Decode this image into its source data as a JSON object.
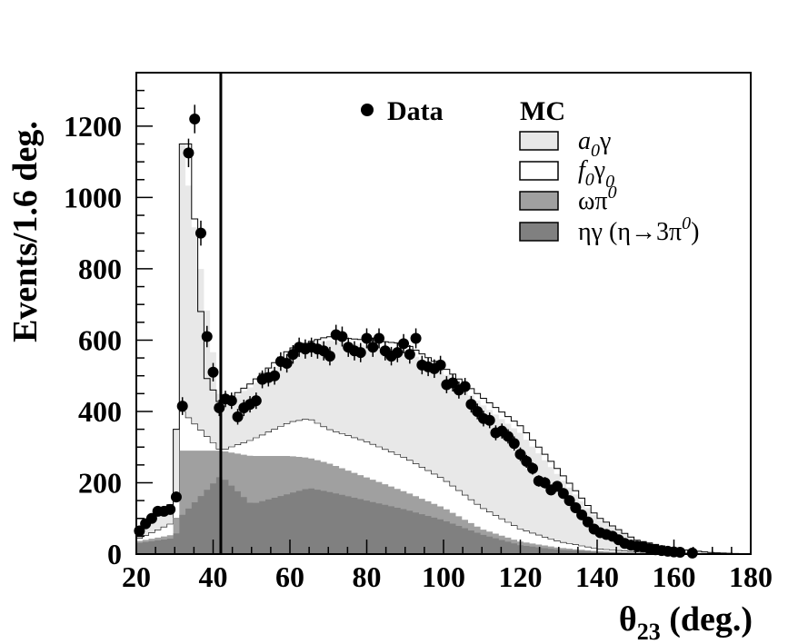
{
  "chart_data": {
    "type": "bar",
    "xlabel_main": "θ",
    "xlabel_sub": "23",
    "xlabel_unit": " (deg.)",
    "ylabel": "Events/1.6 deg.",
    "xlim": [
      20,
      180
    ],
    "ylim": [
      0,
      1350
    ],
    "x_ticks": [
      20,
      40,
      60,
      80,
      100,
      120,
      140,
      160,
      180
    ],
    "y_ticks": [
      0,
      200,
      400,
      600,
      800,
      1000,
      1200
    ],
    "cut_line_x": 42,
    "bin_width": 1.6,
    "legend": {
      "data_label": "Data",
      "mc_header": "MC",
      "a0_main": "a",
      "a0_sub": "0",
      "a0_tail": "γ",
      "f0_main": "f",
      "f0_sub": "0",
      "f0_mid": "γ",
      "f0_sub2": "0",
      "omega_main": "ωπ",
      "omega_sup": "0",
      "eta_main": "ηγ (η→3π",
      "eta_sup": "0",
      "eta_tail": ")"
    },
    "colors": {
      "a0gamma": "#e8e8e8",
      "f0gamma": "#ffffff",
      "omegapi": "#a0a0a0",
      "etagamma": "#808080",
      "data": "#000000"
    },
    "series": [
      {
        "key": "etagamma",
        "x": [
          20,
          30,
          32,
          42,
          50,
          60,
          65,
          70,
          80,
          90,
          100,
          110,
          120,
          130,
          140,
          150,
          160,
          170,
          180
        ],
        "values": [
          30,
          45,
          110,
          220,
          140,
          170,
          185,
          175,
          150,
          125,
          95,
          55,
          25,
          12,
          6,
          3,
          2,
          1,
          0
        ]
      },
      {
        "key": "omegapi",
        "x": [
          20,
          30,
          32,
          42,
          50,
          60,
          65,
          70,
          80,
          90,
          100,
          110,
          120,
          130,
          140,
          150,
          160,
          170,
          180
        ],
        "values": [
          35,
          55,
          290,
          290,
          275,
          275,
          270,
          255,
          215,
          175,
          130,
          70,
          35,
          18,
          8,
          4,
          2,
          1,
          0
        ]
      },
      {
        "key": "f0gamma",
        "x": [
          20,
          30,
          32,
          42,
          50,
          60,
          65,
          70,
          80,
          90,
          100,
          110,
          120,
          130,
          140,
          150,
          160,
          170,
          180
        ],
        "values": [
          40,
          90,
          400,
          290,
          320,
          370,
          380,
          350,
          315,
          270,
          210,
          130,
          70,
          35,
          15,
          6,
          3,
          1,
          0
        ]
      },
      {
        "key": "a0gamma",
        "x": [
          20,
          30,
          32,
          42,
          50,
          60,
          65,
          70,
          80,
          90,
          100,
          110,
          120,
          130,
          140,
          150,
          160,
          170,
          180
        ],
        "values": [
          55,
          150,
          1150,
          420,
          470,
          560,
          585,
          600,
          585,
          570,
          510,
          420,
          340,
          220,
          100,
          40,
          15,
          4,
          0
        ]
      }
    ],
    "total_mc": {
      "x": [
        20,
        30,
        32,
        34,
        36,
        38,
        42,
        50,
        60,
        65,
        70,
        80,
        90,
        100,
        110,
        120,
        130,
        140,
        150,
        160,
        170,
        180
      ],
      "values": [
        55,
        150,
        1150,
        1150,
        800,
        500,
        420,
        480,
        575,
        595,
        610,
        600,
        590,
        525,
        440,
        360,
        235,
        105,
        40,
        15,
        4,
        0
      ]
    },
    "data_points": {
      "x": [
        20.8,
        22.4,
        24.0,
        25.6,
        27.2,
        28.8,
        30.4,
        32.0,
        33.6,
        35.2,
        36.8,
        38.4,
        40.0,
        41.6,
        43.2,
        44.8,
        46.4,
        48.0,
        49.6,
        51.2,
        52.8,
        54.4,
        56.0,
        57.6,
        59.2,
        60.8,
        62.4,
        64.0,
        65.6,
        67.2,
        68.8,
        70.4,
        72.0,
        73.6,
        75.2,
        76.8,
        78.4,
        80.0,
        81.6,
        83.2,
        84.8,
        86.4,
        88.0,
        89.6,
        91.2,
        92.8,
        94.4,
        96.0,
        97.6,
        99.2,
        100.8,
        102.4,
        104.0,
        105.6,
        107.2,
        108.8,
        110.4,
        112.0,
        113.6,
        115.2,
        116.8,
        118.4,
        120.0,
        121.6,
        123.2,
        124.8,
        126.4,
        128.0,
        129.6,
        131.2,
        132.8,
        134.4,
        136.0,
        137.6,
        139.2,
        140.8,
        142.4,
        144.0,
        145.6,
        147.2,
        148.8,
        150.4,
        152.0,
        153.6,
        155.2,
        156.8,
        158.4,
        160.0,
        161.6,
        164.8
      ],
      "y": [
        65,
        85,
        100,
        120,
        120,
        125,
        160,
        415,
        1125,
        1220,
        900,
        610,
        510,
        410,
        435,
        430,
        385,
        410,
        420,
        430,
        490,
        495,
        500,
        540,
        535,
        560,
        580,
        575,
        580,
        575,
        570,
        555,
        615,
        610,
        580,
        570,
        565,
        605,
        580,
        605,
        570,
        555,
        565,
        590,
        560,
        605,
        530,
        525,
        520,
        530,
        475,
        480,
        460,
        470,
        420,
        400,
        380,
        375,
        340,
        345,
        330,
        310,
        280,
        260,
        240,
        205,
        200,
        180,
        190,
        170,
        150,
        130,
        110,
        90,
        70,
        60,
        55,
        50,
        40,
        30,
        25,
        22,
        20,
        15,
        12,
        10,
        8,
        6,
        5,
        3
      ],
      "err": [
        10,
        11,
        12,
        13,
        13,
        13,
        15,
        25,
        40,
        40,
        35,
        30,
        26,
        23,
        23,
        23,
        22,
        23,
        23,
        23,
        25,
        25,
        25,
        26,
        26,
        26,
        27,
        27,
        27,
        27,
        27,
        26,
        28,
        28,
        27,
        27,
        27,
        28,
        27,
        28,
        27,
        26,
        27,
        27,
        26,
        28,
        26,
        26,
        26,
        26,
        24,
        24,
        24,
        24,
        23,
        22,
        22,
        22,
        21,
        21,
        20,
        20,
        19,
        18,
        17,
        16,
        16,
        15,
        15,
        15,
        14,
        13,
        12,
        11,
        10,
        9,
        9,
        8,
        7,
        6,
        6,
        5,
        5,
        4,
        4,
        4,
        3,
        3,
        3,
        2
      ]
    }
  }
}
